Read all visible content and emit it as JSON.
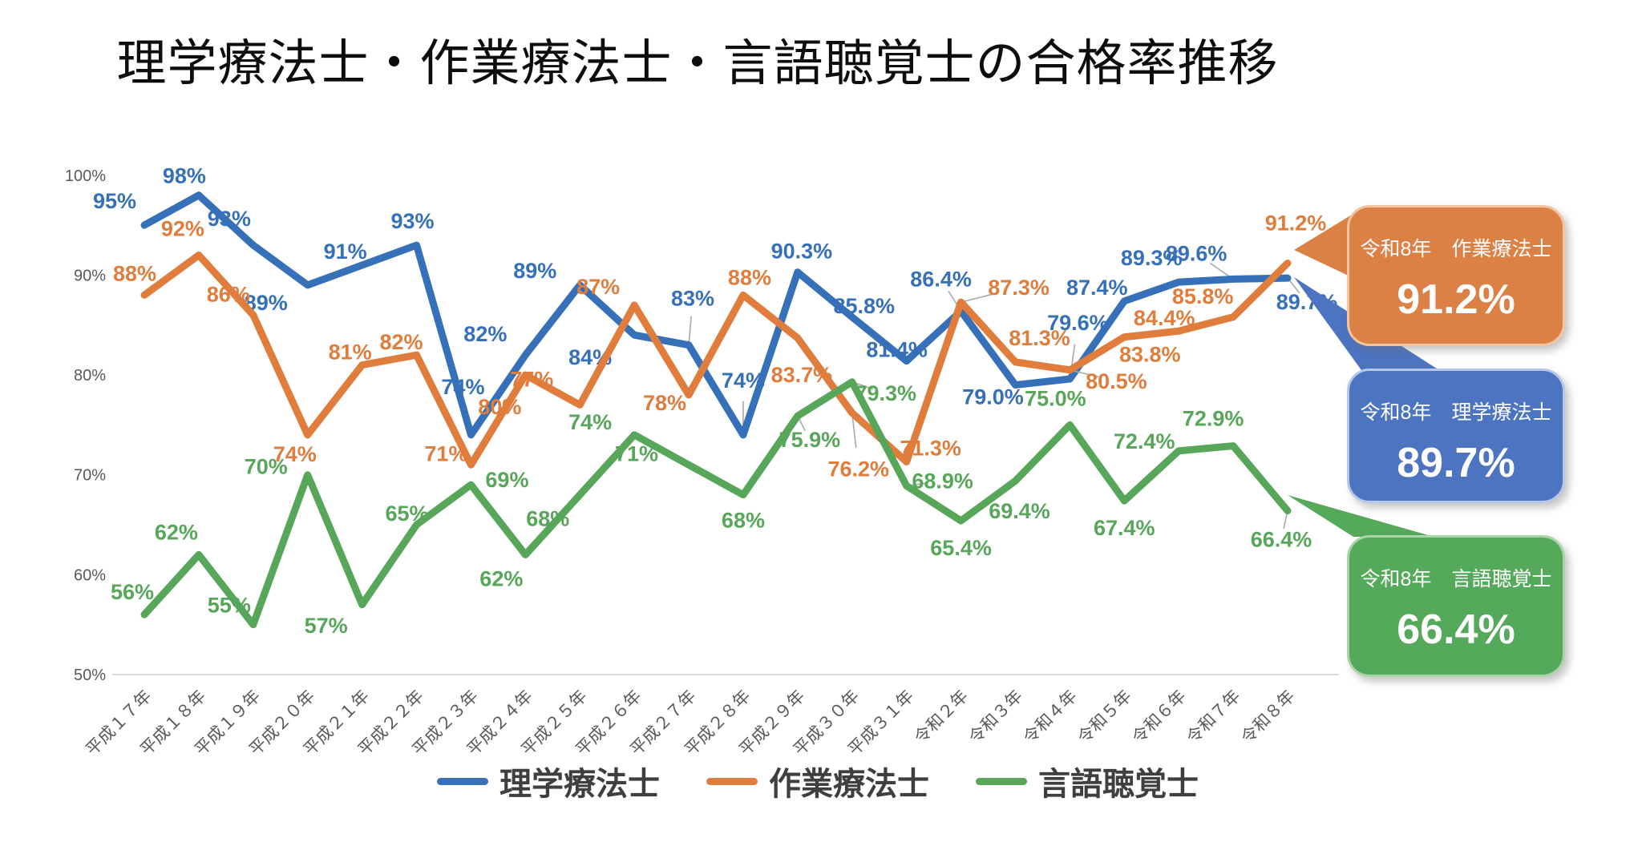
{
  "title": "理学療法士・作業療法士・言語聴覚士の合格率推移",
  "y_axis": {
    "tick_labels": [
      "100%",
      "90%",
      "80%",
      "70%",
      "60%",
      "50%"
    ]
  },
  "chart_data": {
    "type": "line",
    "x": [
      "平成１７年",
      "平成１８年",
      "平成１９年",
      "平成２０年",
      "平成２１年",
      "平成２２年",
      "平成２３年",
      "平成２４年",
      "平成２５年",
      "平成２６年",
      "平成２７年",
      "平成２８年",
      "平成２９年",
      "平成３０年",
      "平成３１年",
      "令和２年",
      "令和３年",
      "令和４年",
      "令和５年",
      "令和６年",
      "令和７年",
      "令和８年"
    ],
    "ylim": [
      50,
      100
    ],
    "grid": false,
    "legend_position": "bottom",
    "series": [
      {
        "name": "理学療法士",
        "color": "#3570B8",
        "values": [
          95,
          98,
          93,
          89,
          91,
          93,
          74,
          82,
          89,
          84,
          83,
          74,
          90.3,
          85.8,
          81.4,
          86.4,
          79.0,
          79.6,
          87.4,
          89.3,
          89.6,
          89.7
        ],
        "labels": [
          "95%",
          "98%",
          "93%",
          "89%",
          "91%",
          "93%",
          "74%",
          "82%",
          "89%",
          "84%",
          "83%",
          "74%",
          "90.3%",
          "85.8%",
          "81.4%",
          "86.4%",
          "79.0%",
          "79.6%",
          "87.4%",
          "89.3%",
          "89.6%",
          "89.7%"
        ]
      },
      {
        "name": "作業療法士",
        "color": "#E07C3C",
        "values": [
          88,
          92,
          86,
          74,
          81,
          82,
          71,
          80,
          77,
          87,
          78,
          88,
          83.7,
          76.2,
          71.3,
          87.3,
          81.3,
          80.5,
          83.8,
          84.4,
          85.8,
          91.2
        ],
        "labels": [
          "88%",
          "92%",
          "86%",
          "74%",
          "81%",
          "82%",
          "71%",
          "80%",
          "77%",
          "87%",
          "78%",
          "88%",
          "83.7%",
          "76.2%",
          "71.3%",
          "87.3%",
          "81.3%",
          "80.5%",
          "83.8%",
          "84.4%",
          "85.8%",
          "91.2%"
        ]
      },
      {
        "name": "言語聴覚士",
        "color": "#57A65A",
        "values": [
          56,
          62,
          55,
          70,
          57,
          65,
          69,
          62,
          68,
          74,
          71,
          68,
          75.9,
          79.3,
          68.9,
          65.4,
          69.4,
          75.0,
          67.4,
          72.4,
          72.9,
          66.4
        ],
        "labels": [
          "56%",
          "62%",
          "55%",
          "70%",
          "57%",
          "65%",
          "69%",
          "62%",
          "68%",
          "74%",
          "71%",
          "68%",
          "75.9%",
          "79.3%",
          "68.9%",
          "65.4%",
          "69.4%",
          "75.0%",
          "67.4%",
          "72.4%",
          "72.9%",
          "66.4%"
        ]
      }
    ]
  },
  "legend": [
    {
      "label": "理学療法士",
      "color": "#3570B8"
    },
    {
      "label": "作業療法士",
      "color": "#E07C3C"
    },
    {
      "label": "言語聴覚士",
      "color": "#57A65A"
    }
  ],
  "callouts": [
    {
      "line1": "令和8年　作業療法士",
      "value": "91.2%",
      "fill": "#DC8145",
      "border": "#F2C4A2"
    },
    {
      "line1": "令和8年　理学療法士",
      "value": "89.7%",
      "fill": "#4C74C0",
      "border": "#B5C8EC"
    },
    {
      "line1": "令和8年　言語聴覚士",
      "value": "66.4%",
      "fill": "#55A95A",
      "border": "#ABD4A9"
    }
  ]
}
